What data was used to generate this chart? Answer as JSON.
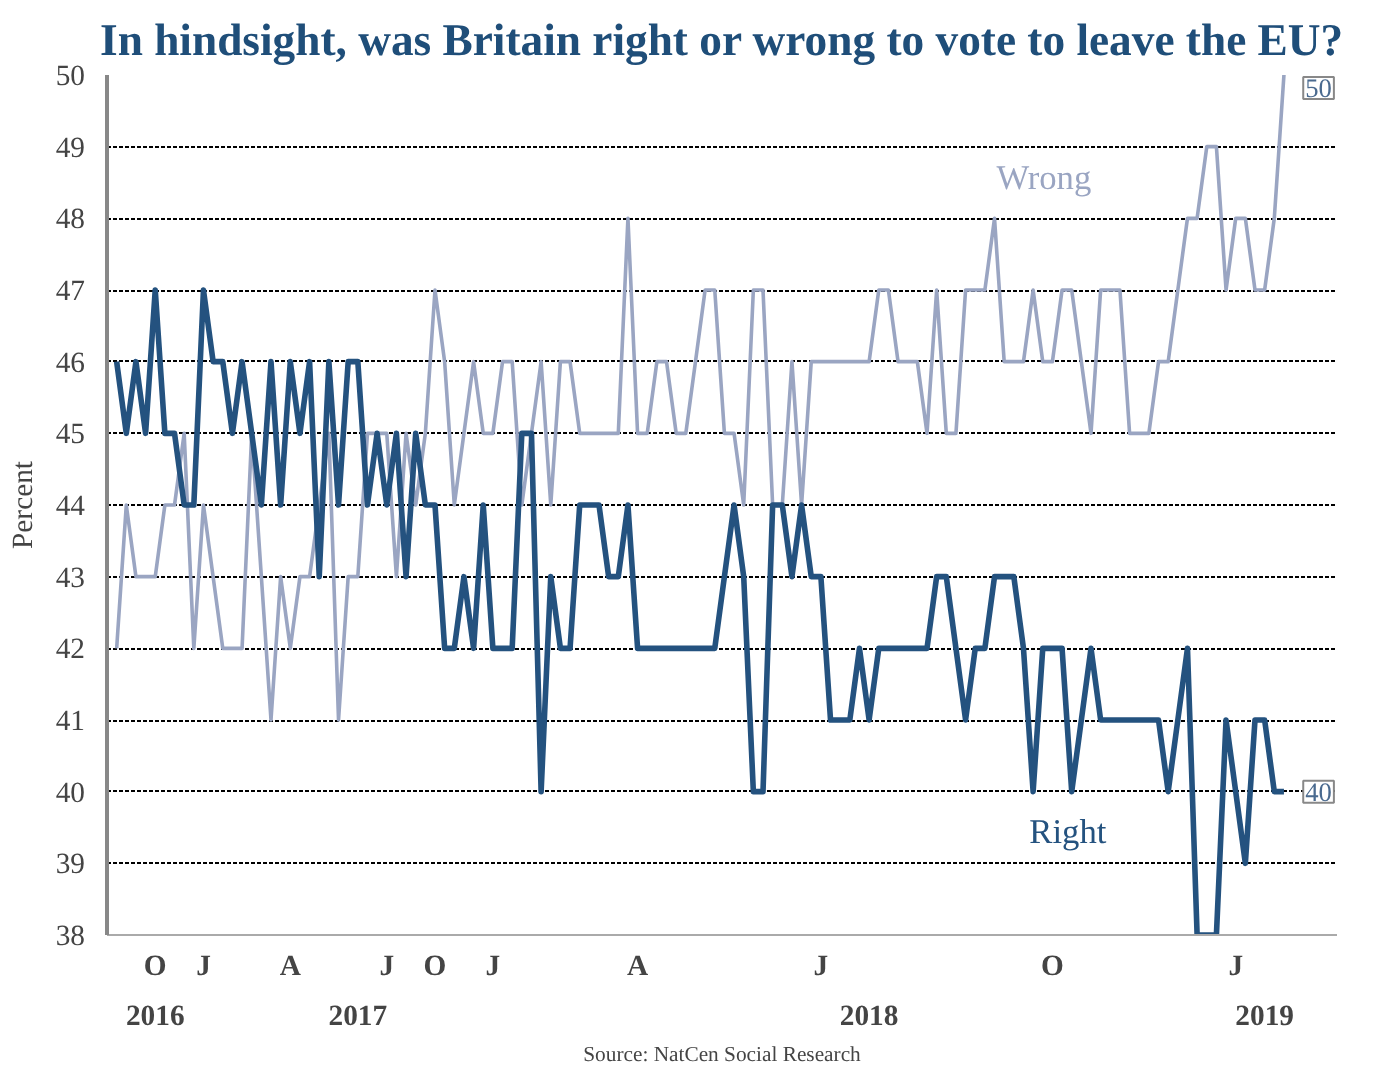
{
  "chart_data": {
    "type": "line",
    "title": "In hindsight, was Britain right or wrong to vote to leave the EU?",
    "ylabel": "Percent",
    "annotations": [
      "Source: NatCen Social Research"
    ],
    "categories": [
      null,
      null,
      null,
      null,
      "O\n2016",
      null,
      null,
      null,
      null,
      "J",
      null,
      null,
      null,
      null,
      null,
      null,
      null,
      null,
      "A",
      null,
      null,
      null,
      null,
      null,
      null,
      "\n2017",
      null,
      null,
      "J",
      null,
      null,
      null,
      null,
      "O",
      null,
      null,
      null,
      null,
      null,
      "J",
      null,
      null,
      null,
      null,
      null,
      null,
      null,
      null,
      null,
      null,
      null,
      null,
      null,
      null,
      "A",
      null,
      null,
      null,
      null,
      null,
      null,
      null,
      null,
      null,
      null,
      null,
      null,
      null,
      null,
      null,
      null,
      null,
      null,
      "J",
      null,
      null,
      null,
      null,
      "\n2018",
      null,
      null,
      null,
      null,
      null,
      null,
      null,
      null,
      null,
      null,
      null,
      null,
      null,
      null,
      null,
      null,
      null,
      null,
      "O",
      null,
      null,
      null,
      null,
      null,
      null,
      null,
      null,
      null,
      null,
      null,
      null,
      null,
      null,
      null,
      null,
      null,
      null,
      "J",
      null,
      null,
      "\n2019",
      null,
      null
    ],
    "ylim": [
      38,
      50
    ],
    "yticks": [
      38,
      39,
      40,
      41,
      42,
      43,
      44,
      45,
      46,
      47,
      48,
      49,
      50
    ],
    "grid": "y",
    "legend": false,
    "line_style": "solid",
    "series": [
      {
        "name": "Wrong",
        "color": "#9aa5c2",
        "values": [
          42,
          44,
          43,
          43,
          43,
          44,
          44,
          45,
          42,
          44,
          43,
          42,
          42,
          42,
          45,
          43,
          41,
          43,
          42,
          43,
          43,
          44,
          45,
          41,
          43,
          43,
          45,
          45,
          45,
          43,
          45,
          44,
          45,
          47,
          46,
          44,
          45,
          46,
          45,
          45,
          46,
          46,
          44,
          45,
          46,
          44,
          46,
          46,
          45,
          45,
          45,
          45,
          45,
          48,
          45,
          45,
          46,
          46,
          45,
          45,
          46,
          47,
          47,
          45,
          45,
          44,
          47,
          47,
          44,
          44,
          46,
          44,
          46,
          46,
          46,
          46,
          46,
          46,
          46,
          47,
          47,
          46,
          46,
          46,
          45,
          47,
          45,
          45,
          47,
          47,
          47,
          48,
          46,
          46,
          46,
          47,
          46,
          46,
          47,
          47,
          46,
          45,
          47,
          47,
          47,
          45,
          45,
          45,
          46,
          46,
          47,
          48,
          48,
          49,
          49,
          47,
          48,
          48,
          47,
          47,
          48,
          50
        ],
        "value_labels": [
          null,
          null,
          null,
          null,
          null,
          null,
          null,
          null,
          null,
          null,
          null,
          null,
          null,
          null,
          null,
          null,
          null,
          null,
          null,
          null,
          null,
          null,
          null,
          null,
          null,
          null,
          null,
          null,
          null,
          null,
          null,
          null,
          null,
          null,
          null,
          null,
          null,
          null,
          null,
          null,
          null,
          null,
          null,
          null,
          null,
          null,
          null,
          null,
          null,
          null,
          null,
          null,
          null,
          null,
          null,
          null,
          null,
          null,
          null,
          null,
          null,
          null,
          null,
          null,
          null,
          null,
          null,
          null,
          null,
          null,
          null,
          null,
          null,
          null,
          null,
          null,
          null,
          null,
          null,
          null,
          null,
          null,
          null,
          null,
          null,
          null,
          null,
          null,
          null,
          null,
          null,
          null,
          null,
          null,
          null,
          null,
          null,
          null,
          null,
          null,
          null,
          null,
          null,
          null,
          null,
          null,
          null,
          null,
          null,
          null,
          null,
          null,
          null,
          null,
          null,
          null,
          null,
          null,
          null,
          null,
          null,
          "50"
        ]
      },
      {
        "name": "Right",
        "color": "#24527f",
        "values": [
          46,
          45,
          46,
          45,
          47,
          45,
          45,
          44,
          44,
          47,
          46,
          46,
          45,
          46,
          45,
          44,
          46,
          44,
          46,
          45,
          46,
          43,
          46,
          44,
          46,
          46,
          44,
          45,
          44,
          45,
          43,
          45,
          44,
          44,
          42,
          42,
          43,
          42,
          44,
          42,
          42,
          42,
          45,
          45,
          40,
          43,
          42,
          42,
          44,
          44,
          44,
          43,
          43,
          44,
          42,
          42,
          42,
          42,
          42,
          42,
          42,
          42,
          42,
          43,
          44,
          43,
          40,
          40,
          44,
          44,
          43,
          44,
          43,
          43,
          41,
          41,
          41,
          42,
          41,
          42,
          42,
          42,
          42,
          42,
          42,
          43,
          43,
          42,
          41,
          42,
          42,
          43,
          43,
          43,
          42,
          40,
          42,
          42,
          42,
          40,
          41,
          42,
          41,
          41,
          41,
          41,
          41,
          41,
          41,
          40,
          41,
          42,
          38,
          38,
          38,
          41,
          40,
          39,
          41,
          41,
          40,
          40
        ],
        "value_labels": [
          null,
          null,
          null,
          null,
          null,
          null,
          null,
          null,
          null,
          null,
          null,
          null,
          null,
          null,
          null,
          null,
          null,
          null,
          null,
          null,
          null,
          null,
          null,
          null,
          null,
          null,
          null,
          null,
          null,
          null,
          null,
          null,
          null,
          null,
          null,
          null,
          null,
          null,
          null,
          null,
          null,
          null,
          null,
          null,
          null,
          null,
          null,
          null,
          null,
          null,
          null,
          null,
          null,
          null,
          null,
          null,
          null,
          null,
          null,
          null,
          null,
          null,
          null,
          null,
          null,
          null,
          null,
          null,
          null,
          null,
          null,
          null,
          null,
          null,
          null,
          null,
          null,
          null,
          null,
          null,
          null,
          null,
          null,
          null,
          null,
          null,
          null,
          null,
          null,
          null,
          null,
          null,
          null,
          null,
          null,
          null,
          null,
          null,
          null,
          null,
          null,
          null,
          null,
          null,
          null,
          null,
          null,
          null,
          null,
          null,
          null,
          null,
          null,
          null,
          null,
          null,
          null,
          null,
          null,
          null,
          null,
          "40"
        ]
      }
    ]
  }
}
